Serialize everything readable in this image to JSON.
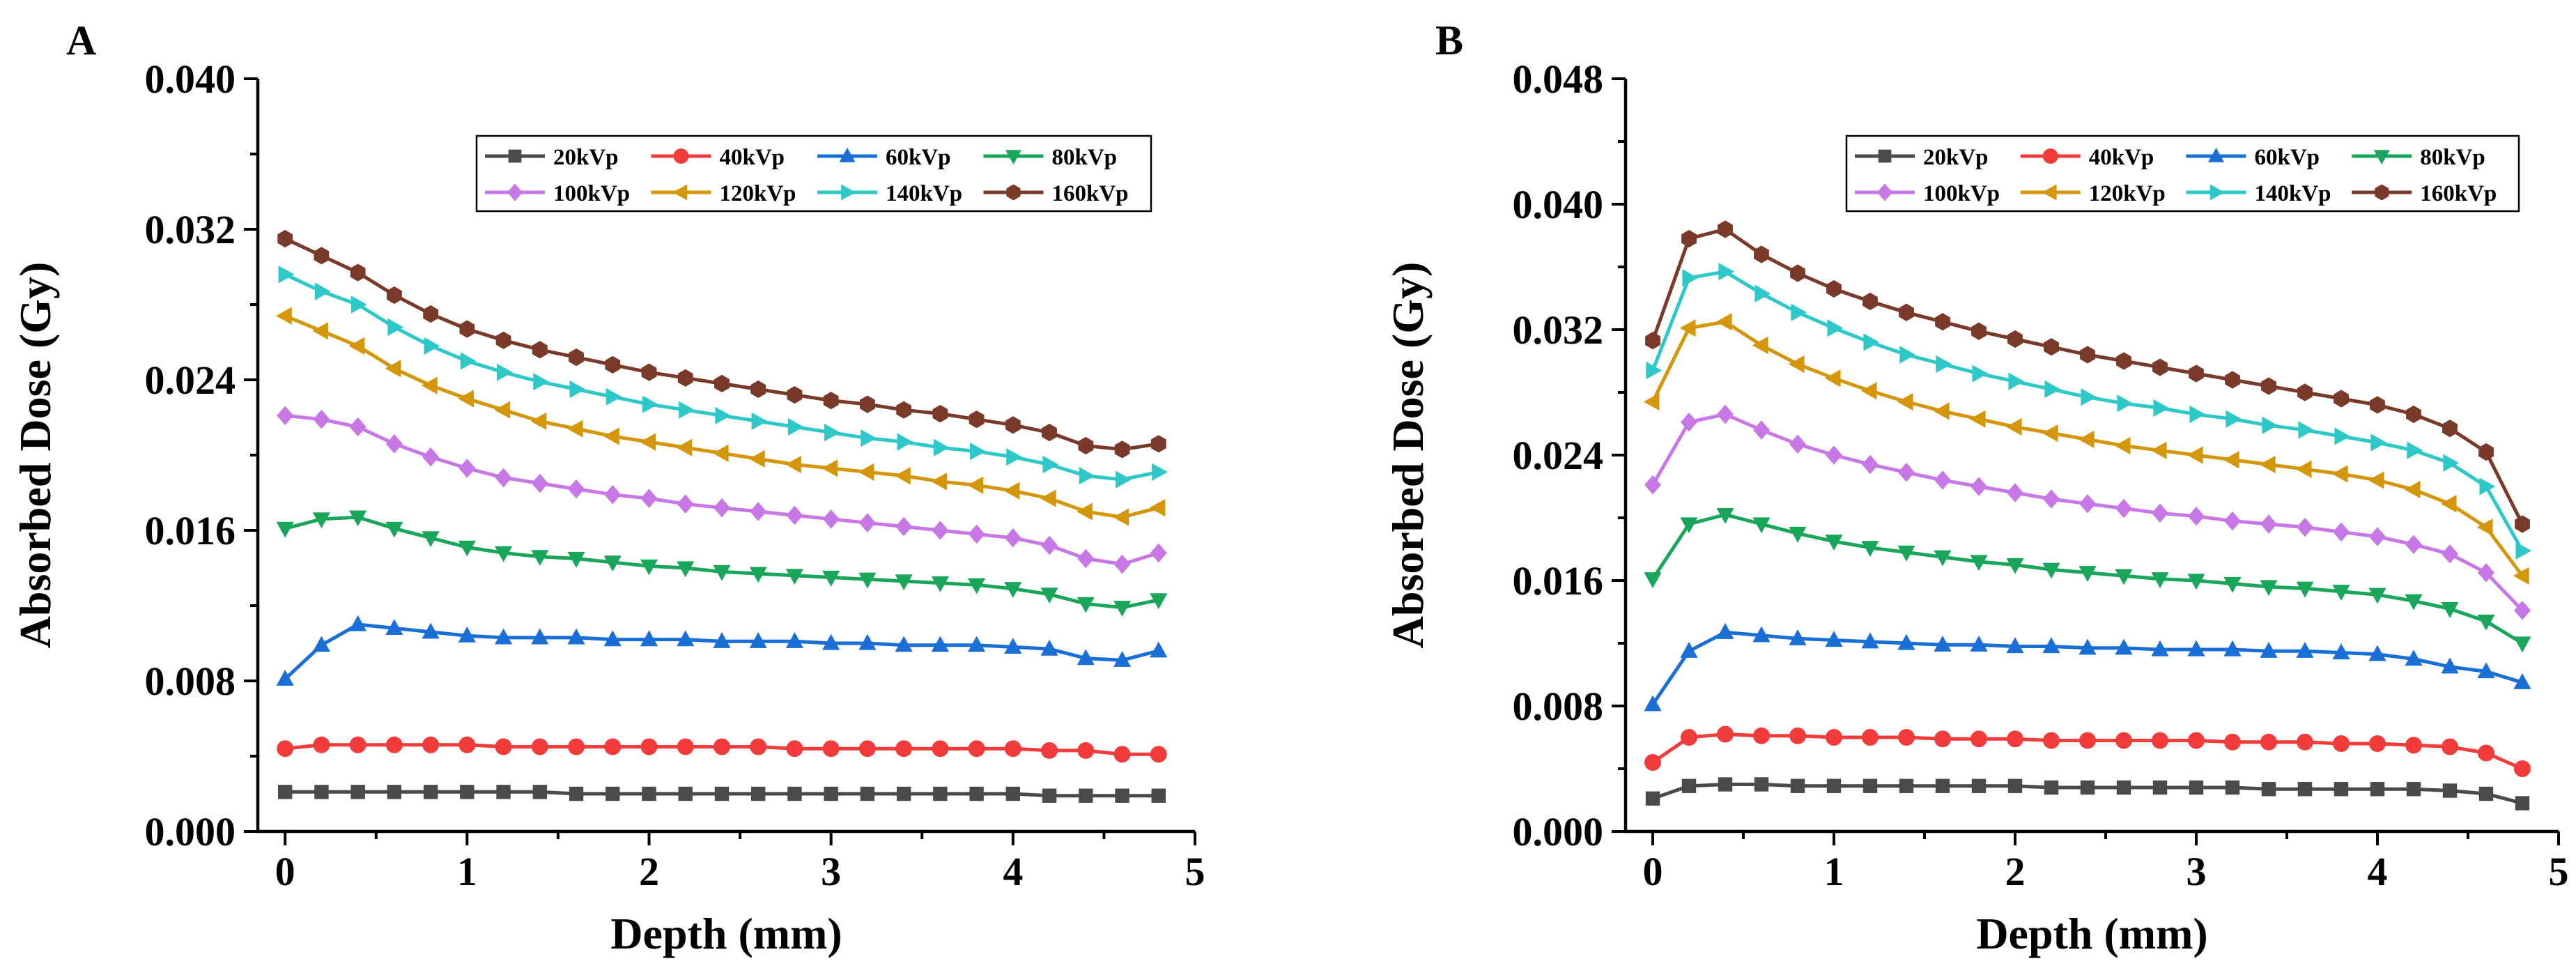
{
  "chart_data": [
    {
      "type": "line",
      "panel_label": "A",
      "xlabel": "Depth (mm)",
      "ylabel": "Absorbed Dose (Gy)",
      "xlim": [
        -0.15,
        5
      ],
      "ylim": [
        0,
        0.04
      ],
      "xticks": [
        0,
        1,
        2,
        3,
        4,
        5
      ],
      "xtick_labels": [
        "0",
        "1",
        "2",
        "3",
        "4",
        "5"
      ],
      "yticks": [
        0,
        0.008,
        0.016,
        0.024,
        0.032,
        0.04
      ],
      "ytick_labels": [
        "0.000",
        "0.008",
        "0.016",
        "0.024",
        "0.032",
        "0.040"
      ],
      "x": [
        0,
        0.2,
        0.4,
        0.6,
        0.8,
        1.0,
        1.2,
        1.4,
        1.6,
        1.8,
        2.0,
        2.2,
        2.4,
        2.6,
        2.8,
        3.0,
        3.2,
        3.4,
        3.6,
        3.8,
        4.0,
        4.2,
        4.4,
        4.6,
        4.8
      ],
      "legend_position": "top-right",
      "series": [
        {
          "name": "20kVp",
          "color": "#4a4a4a",
          "marker": "square",
          "values": [
            0.0021,
            0.0021,
            0.0021,
            0.0021,
            0.0021,
            0.0021,
            0.0021,
            0.0021,
            0.002,
            0.002,
            0.002,
            0.002,
            0.002,
            0.002,
            0.002,
            0.002,
            0.002,
            0.002,
            0.002,
            0.002,
            0.002,
            0.0019,
            0.0019,
            0.0019,
            0.0019
          ]
        },
        {
          "name": "40kVp",
          "color": "#f23c3c",
          "marker": "circle",
          "values": [
            0.0044,
            0.0046,
            0.0046,
            0.0046,
            0.0046,
            0.0046,
            0.0045,
            0.0045,
            0.0045,
            0.0045,
            0.0045,
            0.0045,
            0.0045,
            0.0045,
            0.0044,
            0.0044,
            0.0044,
            0.0044,
            0.0044,
            0.0044,
            0.0044,
            0.0043,
            0.0043,
            0.0041,
            0.0041
          ]
        },
        {
          "name": "60kVp",
          "color": "#1a6fd6",
          "marker": "triangle-up",
          "values": [
            0.0081,
            0.0099,
            0.011,
            0.0108,
            0.0106,
            0.0104,
            0.0103,
            0.0103,
            0.0103,
            0.0102,
            0.0102,
            0.0102,
            0.0101,
            0.0101,
            0.0101,
            0.01,
            0.01,
            0.0099,
            0.0099,
            0.0099,
            0.0098,
            0.0097,
            0.0092,
            0.0091,
            0.0096
          ]
        },
        {
          "name": "80kVp",
          "color": "#1aa65a",
          "marker": "triangle-down",
          "values": [
            0.0161,
            0.0166,
            0.0167,
            0.0161,
            0.0156,
            0.0151,
            0.0148,
            0.0146,
            0.0145,
            0.0143,
            0.0141,
            0.014,
            0.0138,
            0.0137,
            0.0136,
            0.0135,
            0.0134,
            0.0133,
            0.0132,
            0.0131,
            0.0129,
            0.0126,
            0.0121,
            0.0119,
            0.0123
          ]
        },
        {
          "name": "100kVp",
          "color": "#c878e6",
          "marker": "diamond",
          "values": [
            0.0221,
            0.0219,
            0.0215,
            0.0206,
            0.0199,
            0.0193,
            0.0188,
            0.0185,
            0.0182,
            0.0179,
            0.0177,
            0.0174,
            0.0172,
            0.017,
            0.0168,
            0.0166,
            0.0164,
            0.0162,
            0.016,
            0.0158,
            0.0156,
            0.0152,
            0.0145,
            0.0142,
            0.0148
          ]
        },
        {
          "name": "120kVp",
          "color": "#d4960a",
          "marker": "triangle-left",
          "values": [
            0.0274,
            0.0266,
            0.0258,
            0.0246,
            0.0237,
            0.023,
            0.0224,
            0.0218,
            0.0214,
            0.021,
            0.0207,
            0.0204,
            0.0201,
            0.0198,
            0.0195,
            0.0193,
            0.0191,
            0.0189,
            0.0186,
            0.0184,
            0.0181,
            0.0177,
            0.017,
            0.0167,
            0.0172
          ]
        },
        {
          "name": "140kVp",
          "color": "#2ec8c8",
          "marker": "triangle-right",
          "values": [
            0.0296,
            0.0287,
            0.028,
            0.0268,
            0.0258,
            0.025,
            0.0244,
            0.0239,
            0.0235,
            0.0231,
            0.0227,
            0.0224,
            0.0221,
            0.0218,
            0.0215,
            0.0212,
            0.0209,
            0.0207,
            0.0204,
            0.0202,
            0.0199,
            0.0195,
            0.0189,
            0.0187,
            0.0191
          ]
        },
        {
          "name": "160kVp",
          "color": "#7a3a2a",
          "marker": "hexagon",
          "values": [
            0.0315,
            0.0306,
            0.0297,
            0.0285,
            0.0275,
            0.0267,
            0.0261,
            0.0256,
            0.0252,
            0.0248,
            0.0244,
            0.0241,
            0.0238,
            0.0235,
            0.0232,
            0.0229,
            0.0227,
            0.0224,
            0.0222,
            0.0219,
            0.0216,
            0.0212,
            0.0205,
            0.0203,
            0.0206
          ]
        }
      ]
    },
    {
      "type": "line",
      "panel_label": "B",
      "xlabel": "Depth (mm)",
      "ylabel": "Absorbed Dose (Gy)",
      "xlim": [
        -0.15,
        5
      ],
      "ylim": [
        0,
        0.048
      ],
      "xticks": [
        0,
        1,
        2,
        3,
        4,
        5
      ],
      "xtick_labels": [
        "0",
        "1",
        "2",
        "3",
        "4",
        "5"
      ],
      "yticks": [
        0,
        0.008,
        0.016,
        0.024,
        0.032,
        0.04,
        0.048
      ],
      "ytick_labels": [
        "0.000",
        "0.008",
        "0.016",
        "0.024",
        "0.032",
        "0.040",
        "0.048"
      ],
      "x": [
        0,
        0.2,
        0.4,
        0.6,
        0.8,
        1.0,
        1.2,
        1.4,
        1.6,
        1.8,
        2.0,
        2.2,
        2.4,
        2.6,
        2.8,
        3.0,
        3.2,
        3.4,
        3.6,
        3.8,
        4.0,
        4.2,
        4.4,
        4.6,
        4.8
      ],
      "legend_position": "top-right",
      "series": [
        {
          "name": "20kVp",
          "color": "#4a4a4a",
          "marker": "square",
          "values": [
            0.0021,
            0.0029,
            0.003,
            0.003,
            0.0029,
            0.0029,
            0.0029,
            0.0029,
            0.0029,
            0.0029,
            0.0029,
            0.0028,
            0.0028,
            0.0028,
            0.0028,
            0.0028,
            0.0028,
            0.0027,
            0.0027,
            0.0027,
            0.0027,
            0.0027,
            0.0026,
            0.0024,
            0.0018
          ]
        },
        {
          "name": "40kVp",
          "color": "#f23c3c",
          "marker": "circle",
          "values": [
            0.0044,
            0.006,
            0.0062,
            0.0061,
            0.0061,
            0.006,
            0.006,
            0.006,
            0.0059,
            0.0059,
            0.0059,
            0.0058,
            0.0058,
            0.0058,
            0.0058,
            0.0058,
            0.0057,
            0.0057,
            0.0057,
            0.0056,
            0.0056,
            0.0055,
            0.0054,
            0.005,
            0.004
          ]
        },
        {
          "name": "60kVp",
          "color": "#1a6fd6",
          "marker": "triangle-up",
          "values": [
            0.0081,
            0.0115,
            0.0127,
            0.0125,
            0.0123,
            0.0122,
            0.0121,
            0.012,
            0.0119,
            0.0119,
            0.0118,
            0.0118,
            0.0117,
            0.0117,
            0.0116,
            0.0116,
            0.0116,
            0.0115,
            0.0115,
            0.0114,
            0.0113,
            0.011,
            0.0105,
            0.0102,
            0.0095
          ]
        },
        {
          "name": "80kVp",
          "color": "#1aa65a",
          "marker": "triangle-down",
          "values": [
            0.0161,
            0.0196,
            0.0202,
            0.0196,
            0.019,
            0.0185,
            0.0181,
            0.0178,
            0.0175,
            0.0172,
            0.017,
            0.0167,
            0.0165,
            0.0163,
            0.0161,
            0.016,
            0.0158,
            0.0156,
            0.0155,
            0.0153,
            0.0151,
            0.0147,
            0.0142,
            0.0134,
            0.012
          ]
        },
        {
          "name": "100kVp",
          "color": "#c878e6",
          "marker": "diamond",
          "values": [
            0.0221,
            0.0261,
            0.0266,
            0.0256,
            0.0247,
            0.024,
            0.0234,
            0.0229,
            0.0224,
            0.022,
            0.0216,
            0.0212,
            0.0209,
            0.0206,
            0.0203,
            0.0201,
            0.0198,
            0.0196,
            0.0194,
            0.0191,
            0.0188,
            0.0183,
            0.0177,
            0.0165,
            0.0141
          ]
        },
        {
          "name": "120kVp",
          "color": "#d4960a",
          "marker": "triangle-left",
          "values": [
            0.0274,
            0.0321,
            0.0325,
            0.031,
            0.0298,
            0.0289,
            0.0281,
            0.0274,
            0.0268,
            0.0263,
            0.0258,
            0.0254,
            0.025,
            0.0246,
            0.0243,
            0.024,
            0.0237,
            0.0234,
            0.0231,
            0.0228,
            0.0224,
            0.0218,
            0.0209,
            0.0194,
            0.0163
          ]
        },
        {
          "name": "140kVp",
          "color": "#2ec8c8",
          "marker": "triangle-right",
          "values": [
            0.0294,
            0.0353,
            0.0357,
            0.0343,
            0.0331,
            0.0321,
            0.0312,
            0.0304,
            0.0298,
            0.0292,
            0.0287,
            0.0282,
            0.0277,
            0.0273,
            0.027,
            0.0266,
            0.0263,
            0.0259,
            0.0256,
            0.0252,
            0.0248,
            0.0243,
            0.0235,
            0.022,
            0.0179
          ]
        },
        {
          "name": "160kVp",
          "color": "#7a3a2a",
          "marker": "hexagon",
          "values": [
            0.0313,
            0.0378,
            0.0384,
            0.0368,
            0.0356,
            0.0346,
            0.0338,
            0.0331,
            0.0325,
            0.0319,
            0.0314,
            0.0309,
            0.0304,
            0.03,
            0.0296,
            0.0292,
            0.0288,
            0.0284,
            0.028,
            0.0276,
            0.0272,
            0.0266,
            0.0257,
            0.0242,
            0.0196
          ]
        }
      ]
    }
  ]
}
